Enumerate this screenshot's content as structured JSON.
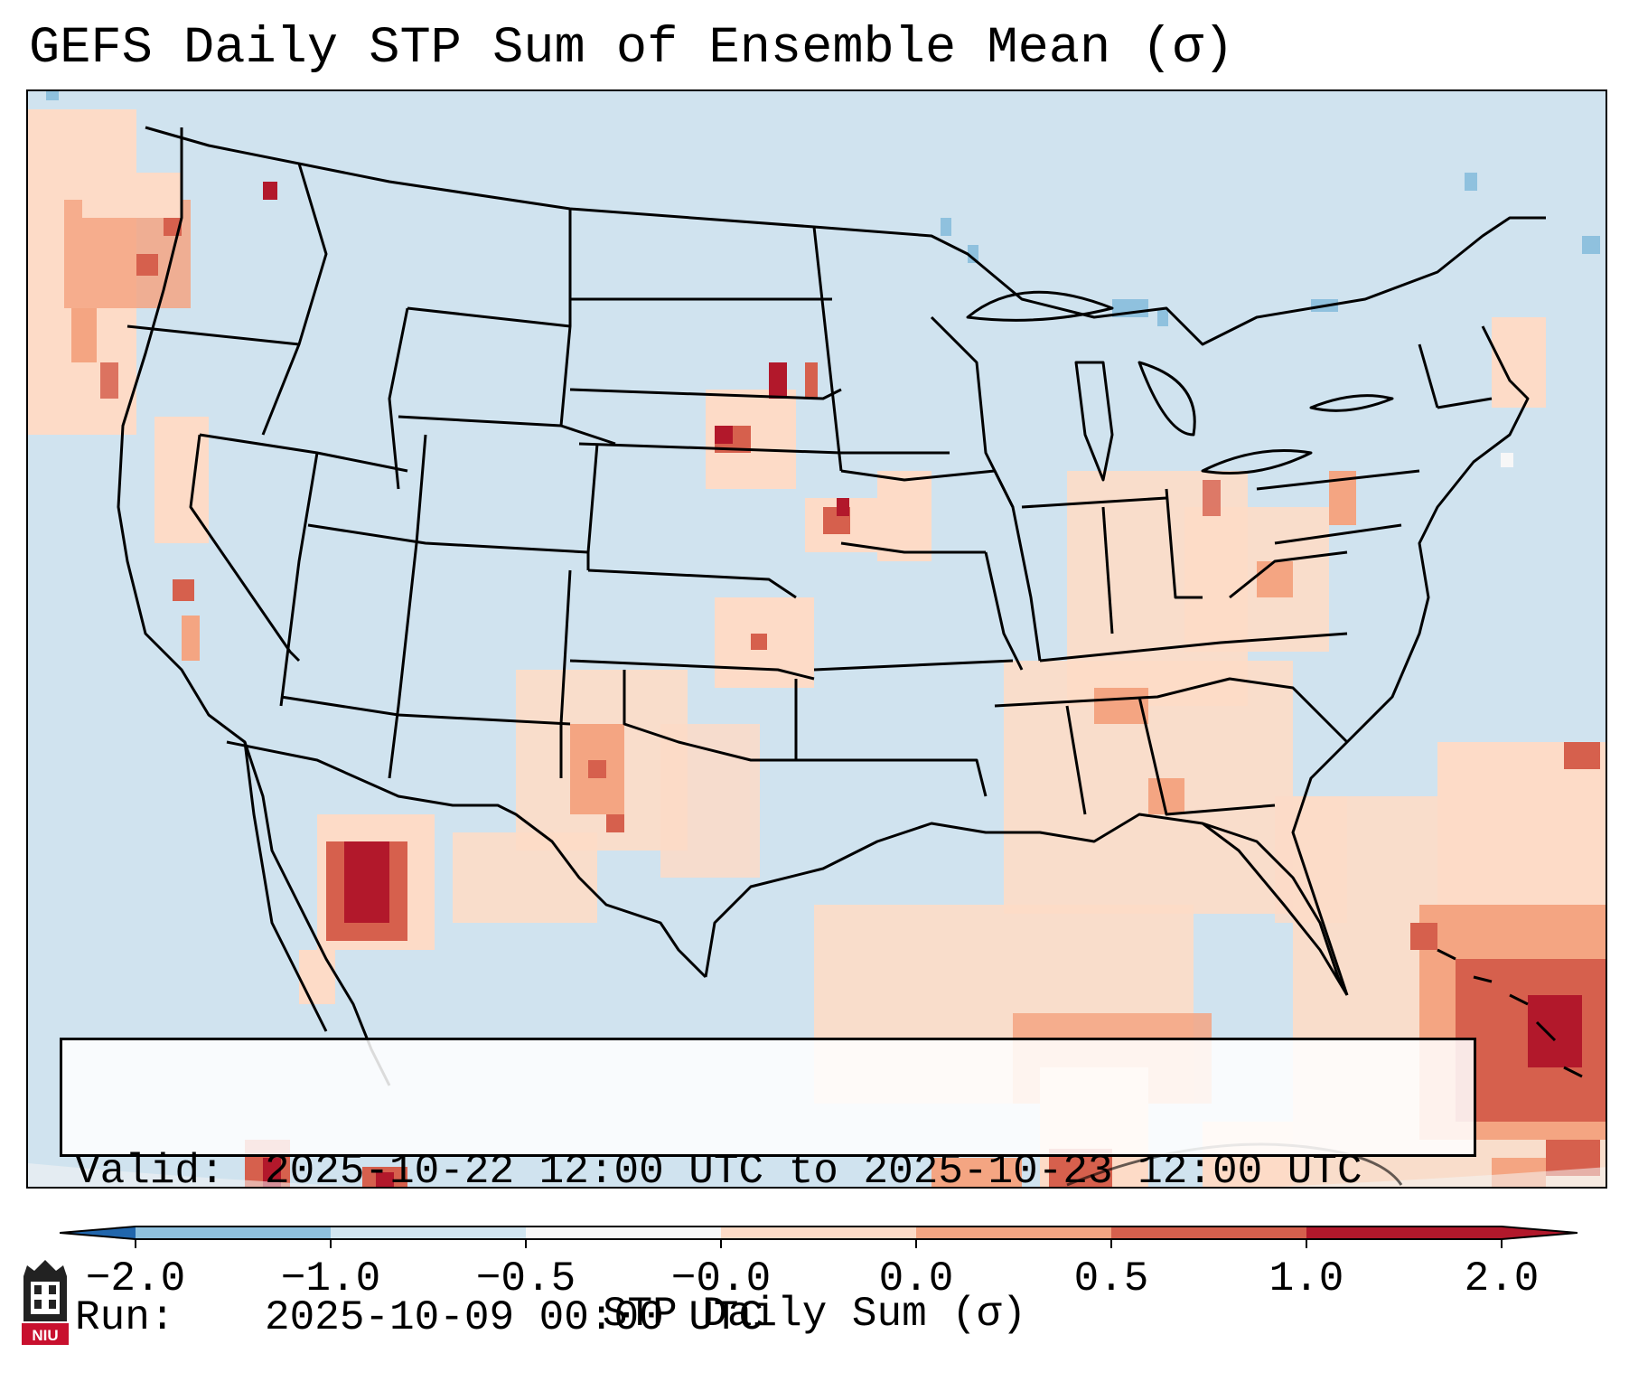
{
  "title": "GEFS Daily STP Sum of Ensemble Mean (σ)",
  "info": {
    "valid_key": "Valid:",
    "valid_value": "2025-10-22 12:00 UTC to 2025-10-23 12:00 UTC",
    "run_key": "Run:",
    "run_value": "2025-10-09 00:00 UTC"
  },
  "colorbar": {
    "label": "STP Daily Sum (σ)",
    "ticks": [
      "−2.0",
      "−1.0",
      "−0.5",
      "−0.0",
      "0.0",
      "0.5",
      "1.0",
      "2.0"
    ],
    "colors": [
      "#3d87bf",
      "#8fc1de",
      "#d1e5f0",
      "#f7f7f7",
      "#fddbc7",
      "#f4a582",
      "#d6604d",
      "#b2182b"
    ],
    "extend_low_color": "#2166ac",
    "extend_high_color": "#b2182b"
  },
  "map": {
    "background_color": "#d0e3ef",
    "regions": [
      {
        "name": "pacific-northwest-coast",
        "level": 1
      },
      {
        "name": "northern-california-coast",
        "level": 1
      },
      {
        "name": "sonora-mexico",
        "level": 3
      },
      {
        "name": "new-mexico",
        "level": 1
      },
      {
        "name": "west-texas",
        "level": 1
      },
      {
        "name": "southeast-states",
        "level": 1
      },
      {
        "name": "ohio-valley",
        "level": 1
      },
      {
        "name": "gulf-of-mexico",
        "level": 1
      },
      {
        "name": "bahamas-atlantic",
        "level": 2
      },
      {
        "name": "south-dakota",
        "level": 3
      },
      {
        "name": "nebraska",
        "level": 3
      }
    ]
  },
  "logo": {
    "text": "NIU"
  }
}
